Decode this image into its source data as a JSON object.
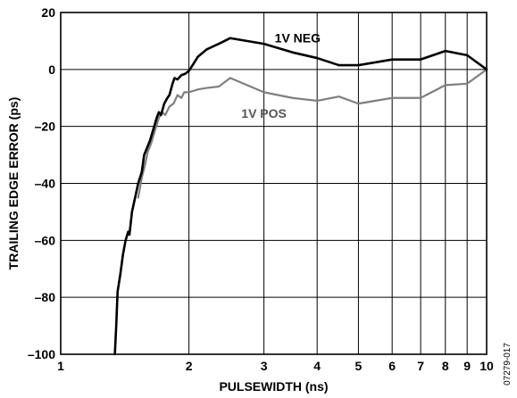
{
  "chart_data": {
    "type": "line",
    "xlabel": "PULSEWIDTH (ns)",
    "ylabel": "TRAILING EDGE ERROR (ps)",
    "xscale": "log",
    "xlim": [
      1,
      10
    ],
    "ylim": [
      -100,
      20
    ],
    "grid": true,
    "x_ticks": [
      {
        "value": 1,
        "label": "1"
      },
      {
        "value": 2,
        "label": "2"
      },
      {
        "value": 3,
        "label": "3"
      },
      {
        "value": 4,
        "label": "4"
      },
      {
        "value": 5,
        "label": "5"
      },
      {
        "value": 6,
        "label": "6"
      },
      {
        "value": 7,
        "label": "7"
      },
      {
        "value": 8,
        "label": "8"
      },
      {
        "value": 9,
        "label": "9"
      },
      {
        "value": 10,
        "label": "10"
      }
    ],
    "y_ticks": [
      {
        "value": 20,
        "label": "20"
      },
      {
        "value": 0,
        "label": "0"
      },
      {
        "value": -20,
        "label": "–20"
      },
      {
        "value": -40,
        "label": "–40"
      },
      {
        "value": -60,
        "label": "–60"
      },
      {
        "value": -80,
        "label": "–80"
      },
      {
        "value": -100,
        "label": "–100"
      }
    ],
    "series": [
      {
        "name": "1V NEG",
        "color": "#000000",
        "label_at": {
          "x": 3.6,
          "y": 9.5
        },
        "points": [
          [
            1.34,
            -100
          ],
          [
            1.35,
            -90
          ],
          [
            1.36,
            -78
          ],
          [
            1.38,
            -72
          ],
          [
            1.4,
            -65
          ],
          [
            1.42,
            -60
          ],
          [
            1.44,
            -57
          ],
          [
            1.45,
            -58
          ],
          [
            1.47,
            -50
          ],
          [
            1.5,
            -44
          ],
          [
            1.52,
            -40
          ],
          [
            1.55,
            -36
          ],
          [
            1.57,
            -30
          ],
          [
            1.6,
            -27
          ],
          [
            1.62,
            -25
          ],
          [
            1.65,
            -21
          ],
          [
            1.68,
            -17
          ],
          [
            1.7,
            -15
          ],
          [
            1.72,
            -16
          ],
          [
            1.75,
            -12
          ],
          [
            1.78,
            -10
          ],
          [
            1.8,
            -9
          ],
          [
            1.83,
            -5
          ],
          [
            1.85,
            -3
          ],
          [
            1.88,
            -3.5
          ],
          [
            1.92,
            -2
          ],
          [
            1.96,
            -1.5
          ],
          [
            2.0,
            -0.5
          ],
          [
            2.05,
            2
          ],
          [
            2.1,
            4.5
          ],
          [
            2.2,
            7
          ],
          [
            2.35,
            9
          ],
          [
            2.5,
            11
          ],
          [
            3.0,
            9
          ],
          [
            3.5,
            6
          ],
          [
            4.0,
            4
          ],
          [
            4.5,
            1.5
          ],
          [
            5.0,
            1.5
          ],
          [
            6.0,
            3.5
          ],
          [
            7.0,
            3.5
          ],
          [
            8.0,
            6.5
          ],
          [
            9.0,
            5
          ],
          [
            10.0,
            0
          ]
        ]
      },
      {
        "name": "1V POS",
        "color": "#7f7f7f",
        "label_at": {
          "x": 3.0,
          "y": -17
        },
        "points": [
          [
            1.52,
            -45
          ],
          [
            1.55,
            -38
          ],
          [
            1.58,
            -33
          ],
          [
            1.6,
            -29
          ],
          [
            1.63,
            -26
          ],
          [
            1.66,
            -22
          ],
          [
            1.7,
            -17
          ],
          [
            1.73,
            -15
          ],
          [
            1.76,
            -16
          ],
          [
            1.8,
            -13
          ],
          [
            1.84,
            -12
          ],
          [
            1.88,
            -9
          ],
          [
            1.92,
            -10
          ],
          [
            1.95,
            -8
          ],
          [
            2.0,
            -8
          ],
          [
            2.1,
            -7
          ],
          [
            2.2,
            -6.5
          ],
          [
            2.35,
            -6
          ],
          [
            2.5,
            -3
          ],
          [
            3.0,
            -8
          ],
          [
            3.5,
            -10
          ],
          [
            4.0,
            -11
          ],
          [
            4.5,
            -9.5
          ],
          [
            5.0,
            -12
          ],
          [
            6.0,
            -10
          ],
          [
            7.0,
            -10
          ],
          [
            8.0,
            -5.5
          ],
          [
            9.0,
            -5
          ],
          [
            10.0,
            0
          ]
        ]
      }
    ],
    "figure_id": "07279-017"
  }
}
